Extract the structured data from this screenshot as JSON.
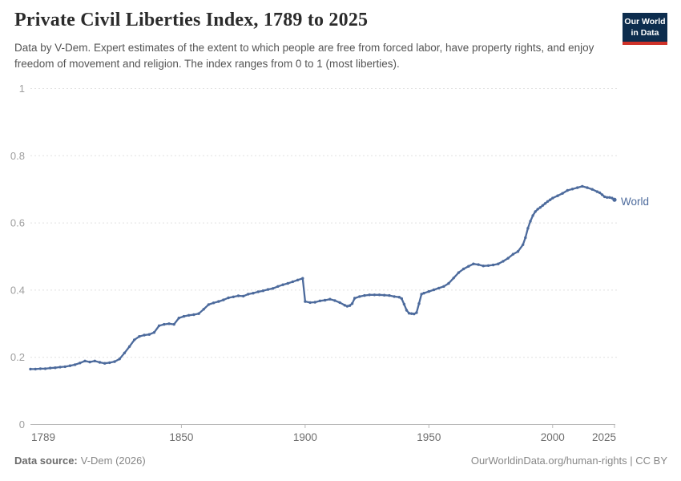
{
  "header": {
    "title": "Private Civil Liberties Index, 1789 to 2025",
    "subtitle": "Data by V-Dem. Expert estimates of the extent to which people are free from forced labor, have property rights, and enjoy freedom of movement and religion. The index ranges from 0 to 1 (most liberties).",
    "logo": {
      "line1": "Our World",
      "line2": "in Data",
      "bg_color": "#0d2d4e",
      "accent_color": "#cf3229"
    }
  },
  "chart_data": {
    "type": "line",
    "title": "Private Civil Liberties Index, 1789 to 2025",
    "entity": "World",
    "xlabel": "",
    "ylabel": "",
    "xlim": [
      1789,
      2025
    ],
    "ylim": [
      0,
      1
    ],
    "x_ticks": [
      1789,
      1850,
      1900,
      1950,
      2000,
      2025
    ],
    "y_ticks": [
      0,
      0.2,
      0.4,
      0.6,
      0.8,
      1
    ],
    "grid": "horizontal-dashed",
    "legend_position": "end-of-line",
    "line_color": "#4c6a9c",
    "grid_color": "#e0e0e0",
    "axis_color": "#b8b8b8",
    "y_label_color": "#9e9e9e",
    "x_label_color": "#6e6e6e",
    "series": [
      {
        "name": "World",
        "points": [
          [
            1789,
            0.165
          ],
          [
            1791,
            0.165
          ],
          [
            1793,
            0.166
          ],
          [
            1795,
            0.166
          ],
          [
            1797,
            0.168
          ],
          [
            1799,
            0.169
          ],
          [
            1801,
            0.171
          ],
          [
            1803,
            0.172
          ],
          [
            1805,
            0.175
          ],
          [
            1807,
            0.178
          ],
          [
            1809,
            0.183
          ],
          [
            1811,
            0.189
          ],
          [
            1813,
            0.186
          ],
          [
            1815,
            0.189
          ],
          [
            1817,
            0.185
          ],
          [
            1819,
            0.182
          ],
          [
            1821,
            0.184
          ],
          [
            1823,
            0.187
          ],
          [
            1825,
            0.195
          ],
          [
            1827,
            0.213
          ],
          [
            1829,
            0.232
          ],
          [
            1831,
            0.252
          ],
          [
            1833,
            0.262
          ],
          [
            1835,
            0.266
          ],
          [
            1837,
            0.268
          ],
          [
            1839,
            0.274
          ],
          [
            1841,
            0.294
          ],
          [
            1843,
            0.298
          ],
          [
            1845,
            0.3
          ],
          [
            1847,
            0.298
          ],
          [
            1849,
            0.317
          ],
          [
            1851,
            0.322
          ],
          [
            1853,
            0.325
          ],
          [
            1855,
            0.327
          ],
          [
            1857,
            0.33
          ],
          [
            1859,
            0.343
          ],
          [
            1861,
            0.357
          ],
          [
            1863,
            0.362
          ],
          [
            1865,
            0.366
          ],
          [
            1867,
            0.371
          ],
          [
            1869,
            0.377
          ],
          [
            1871,
            0.38
          ],
          [
            1873,
            0.383
          ],
          [
            1875,
            0.382
          ],
          [
            1877,
            0.388
          ],
          [
            1879,
            0.391
          ],
          [
            1881,
            0.395
          ],
          [
            1883,
            0.398
          ],
          [
            1885,
            0.402
          ],
          [
            1887,
            0.405
          ],
          [
            1889,
            0.411
          ],
          [
            1891,
            0.416
          ],
          [
            1893,
            0.42
          ],
          [
            1895,
            0.425
          ],
          [
            1897,
            0.43
          ],
          [
            1899,
            0.435
          ],
          [
            1900,
            0.366
          ],
          [
            1902,
            0.363
          ],
          [
            1904,
            0.364
          ],
          [
            1906,
            0.368
          ],
          [
            1908,
            0.37
          ],
          [
            1910,
            0.373
          ],
          [
            1912,
            0.369
          ],
          [
            1914,
            0.363
          ],
          [
            1916,
            0.355
          ],
          [
            1917,
            0.352
          ],
          [
            1918,
            0.354
          ],
          [
            1919,
            0.36
          ],
          [
            1920,
            0.376
          ],
          [
            1922,
            0.381
          ],
          [
            1924,
            0.384
          ],
          [
            1926,
            0.386
          ],
          [
            1928,
            0.386
          ],
          [
            1930,
            0.386
          ],
          [
            1932,
            0.385
          ],
          [
            1934,
            0.384
          ],
          [
            1936,
            0.381
          ],
          [
            1938,
            0.379
          ],
          [
            1939,
            0.375
          ],
          [
            1940,
            0.358
          ],
          [
            1941,
            0.34
          ],
          [
            1942,
            0.331
          ],
          [
            1943,
            0.33
          ],
          [
            1944,
            0.329
          ],
          [
            1945,
            0.333
          ],
          [
            1946,
            0.36
          ],
          [
            1947,
            0.388
          ],
          [
            1948,
            0.391
          ],
          [
            1950,
            0.396
          ],
          [
            1952,
            0.401
          ],
          [
            1954,
            0.406
          ],
          [
            1956,
            0.411
          ],
          [
            1958,
            0.42
          ],
          [
            1960,
            0.436
          ],
          [
            1962,
            0.452
          ],
          [
            1964,
            0.463
          ],
          [
            1966,
            0.471
          ],
          [
            1968,
            0.478
          ],
          [
            1970,
            0.476
          ],
          [
            1972,
            0.472
          ],
          [
            1974,
            0.473
          ],
          [
            1976,
            0.475
          ],
          [
            1978,
            0.478
          ],
          [
            1980,
            0.486
          ],
          [
            1982,
            0.495
          ],
          [
            1984,
            0.507
          ],
          [
            1986,
            0.515
          ],
          [
            1988,
            0.535
          ],
          [
            1989,
            0.556
          ],
          [
            1990,
            0.584
          ],
          [
            1991,
            0.605
          ],
          [
            1992,
            0.622
          ],
          [
            1993,
            0.634
          ],
          [
            1994,
            0.641
          ],
          [
            1995,
            0.646
          ],
          [
            1996,
            0.652
          ],
          [
            1997,
            0.658
          ],
          [
            1998,
            0.664
          ],
          [
            1999,
            0.669
          ],
          [
            2000,
            0.674
          ],
          [
            2002,
            0.681
          ],
          [
            2004,
            0.688
          ],
          [
            2006,
            0.697
          ],
          [
            2008,
            0.701
          ],
          [
            2010,
            0.705
          ],
          [
            2012,
            0.709
          ],
          [
            2014,
            0.705
          ],
          [
            2016,
            0.7
          ],
          [
            2018,
            0.693
          ],
          [
            2019,
            0.69
          ],
          [
            2020,
            0.684
          ],
          [
            2021,
            0.678
          ],
          [
            2022,
            0.676
          ],
          [
            2023,
            0.676
          ],
          [
            2024,
            0.674
          ],
          [
            2025,
            0.669
          ]
        ]
      }
    ]
  },
  "footer": {
    "source_label": "Data source:",
    "source_value": "V-Dem (2026)",
    "right_text": "OurWorldinData.org/human-rights | CC BY"
  }
}
